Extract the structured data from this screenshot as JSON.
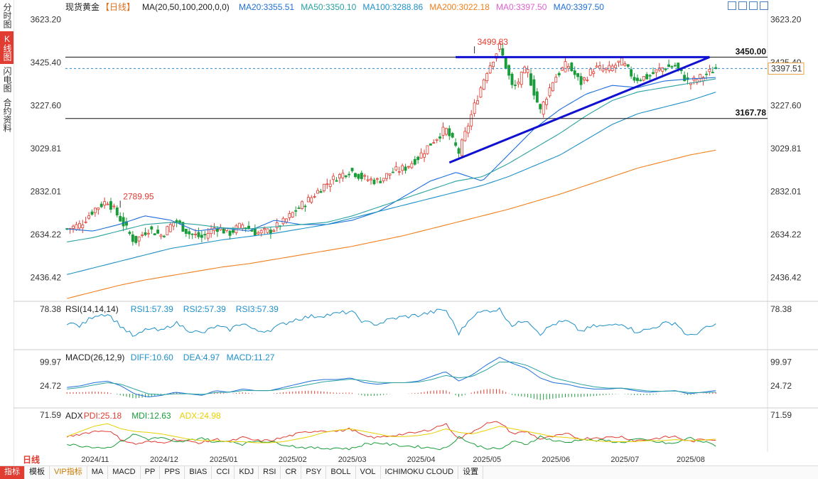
{
  "sidebar": {
    "tabs": [
      {
        "label": "分时图",
        "active": false
      },
      {
        "label": "K线图",
        "active": true
      },
      {
        "label": "闪电图",
        "active": false
      },
      {
        "label": "合约资料",
        "active": false
      }
    ]
  },
  "header": {
    "symbol": "现货黄金",
    "period": "【日线】",
    "ma_params": "MA(20,50,100,200,0,0)",
    "ma_values": [
      {
        "label": "MA20:3355.51",
        "color": "#1e6fd9"
      },
      {
        "label": "MA50:3350.10",
        "color": "#2aa1a1"
      },
      {
        "label": "MA100:3288.86",
        "color": "#1e90c8"
      },
      {
        "label": "MA200:3022.18",
        "color": "#f07f1c"
      },
      {
        "label": "MA0:3397.50",
        "color": "#e060d0"
      },
      {
        "label": "MA0:3397.50",
        "color": "#1e6fd9"
      }
    ]
  },
  "colors": {
    "up": "#e03c31",
    "down": "#1a9c3a",
    "trend": "#1010d0",
    "ma20": "#1e6fd9",
    "ma50": "#2aa1a1",
    "ma100": "#1e90c8",
    "ma200": "#f07f1c"
  },
  "chart_data": [
    {
      "type": "candlestick",
      "title": "现货黄金 【日线】",
      "y_ticks": [
        3623.2,
        3425.4,
        3227.6,
        3029.81,
        2832.01,
        2634.22,
        2436.42
      ],
      "ylim": [
        2340,
        3680
      ],
      "x_labels": [
        "2024/11",
        "2024/12",
        "2025/01",
        "2025/02",
        "2025/03",
        "2025/04",
        "2025/05",
        "2025/06",
        "2025/07",
        "2025/08"
      ],
      "x_label_index": [
        9,
        31,
        50,
        72,
        91,
        113,
        134,
        156,
        178,
        199
      ],
      "n_bars": 208,
      "ohlc_shape": "dense daily bars",
      "series": [
        {
          "name": "MA20",
          "values": [
            2660,
            2650,
            2680,
            2720,
            2700,
            2650,
            2665,
            2650,
            2700,
            2680,
            2680,
            2700,
            2740,
            2810,
            2880,
            2920,
            2880,
            3000,
            3120,
            3210,
            3280,
            3320,
            3310,
            3340,
            3350,
            3356
          ]
        },
        {
          "name": "MA50",
          "values": [
            2600,
            2620,
            2650,
            2680,
            2690,
            2680,
            2665,
            2660,
            2670,
            2680,
            2690,
            2720,
            2760,
            2800,
            2840,
            2880,
            2900,
            2960,
            3030,
            3100,
            3180,
            3250,
            3290,
            3310,
            3330,
            3350
          ]
        },
        {
          "name": "MA100",
          "values": [
            2450,
            2480,
            2510,
            2540,
            2570,
            2590,
            2610,
            2625,
            2640,
            2660,
            2680,
            2710,
            2740,
            2770,
            2800,
            2830,
            2860,
            2900,
            2950,
            3000,
            3070,
            3140,
            3190,
            3220,
            3250,
            3289
          ]
        },
        {
          "name": "MA200",
          "values": [
            2340,
            2370,
            2400,
            2425,
            2445,
            2465,
            2485,
            2500,
            2520,
            2540,
            2560,
            2580,
            2605,
            2630,
            2660,
            2690,
            2720,
            2750,
            2785,
            2820,
            2860,
            2900,
            2940,
            2970,
            3000,
            3022
          ]
        }
      ],
      "close": [
        2660,
        2680,
        2750,
        2790,
        2700,
        2600,
        2660,
        2630,
        2700,
        2640,
        2620,
        2670,
        2640,
        2680,
        2640,
        2650,
        2690,
        2750,
        2800,
        2860,
        2900,
        2930,
        2890,
        2880,
        2920,
        2940,
        2990,
        3060,
        3120,
        3010,
        3200,
        3380,
        3500,
        3300,
        3400,
        3200,
        3350,
        3420,
        3330,
        3400,
        3390,
        3430,
        3350,
        3360,
        3400,
        3410,
        3330,
        3360,
        3398
      ],
      "annotations": [
        {
          "text": "3499.83",
          "kind": "high"
        },
        {
          "text": "2789.95",
          "kind": "high"
        },
        {
          "text": "3450.00",
          "kind": "level",
          "y": 3450.0
        },
        {
          "text": "3167.78",
          "kind": "level",
          "y": 3167.78
        },
        {
          "text": "3397.51",
          "kind": "last",
          "y": 3397.51
        }
      ]
    },
    {
      "type": "line",
      "title": "RSI(14,14,14)",
      "legend": [
        {
          "label": "RSI1:57.39",
          "color": "#1e90c8"
        },
        {
          "label": "RSI2:57.39",
          "color": "#1e90c8"
        },
        {
          "label": "RSI3:57.39",
          "color": "#1e90c8"
        }
      ],
      "y_ticks": [
        78.38
      ],
      "ylim": [
        25,
        85
      ],
      "values": [
        60,
        55,
        70,
        72,
        55,
        40,
        52,
        48,
        60,
        50,
        45,
        55,
        50,
        60,
        48,
        50,
        58,
        65,
        68,
        70,
        72,
        75,
        60,
        58,
        65,
        68,
        70,
        74,
        78,
        45,
        70,
        76,
        78,
        55,
        65,
        45,
        58,
        62,
        48,
        55,
        55,
        60,
        48,
        50,
        58,
        60,
        40,
        50,
        57
      ]
    },
    {
      "type": "bar+line",
      "title": "MACD(26,12,9)",
      "legend": [
        {
          "label": "DIFF:10.60",
          "color": "#1e90c8"
        },
        {
          "label": "DEA:4.97",
          "color": "#1e90c8"
        },
        {
          "label": "MACD:11.27",
          "color": "#1e90c8"
        }
      ],
      "y_ticks": [
        99.97,
        24.72
      ],
      "ylim": [
        -40,
        130
      ],
      "diff": [
        20,
        25,
        35,
        40,
        25,
        0,
        -10,
        -5,
        5,
        0,
        -5,
        10,
        5,
        15,
        10,
        10,
        20,
        30,
        40,
        45,
        45,
        50,
        35,
        30,
        35,
        35,
        40,
        55,
        70,
        40,
        60,
        90,
        115,
        95,
        80,
        50,
        35,
        30,
        20,
        15,
        15,
        18,
        10,
        5,
        8,
        10,
        0,
        5,
        10
      ],
      "dea": [
        15,
        20,
        28,
        35,
        30,
        15,
        0,
        -3,
        0,
        0,
        -2,
        4,
        5,
        10,
        10,
        10,
        15,
        22,
        30,
        38,
        42,
        46,
        42,
        36,
        35,
        35,
        37,
        45,
        58,
        50,
        55,
        75,
        100,
        100,
        90,
        70,
        50,
        40,
        30,
        22,
        18,
        18,
        14,
        9,
        8,
        9,
        4,
        4,
        5
      ]
    },
    {
      "type": "line",
      "title": "ADX",
      "legend": [
        {
          "label": "PDI:25.18",
          "color": "#e03c31"
        },
        {
          "label": "MDI:12.63",
          "color": "#1a9c3a"
        },
        {
          "label": "ADX:24.98",
          "color": "#e8d000"
        }
      ],
      "y_ticks": [
        71.59
      ],
      "ylim": [
        0,
        80
      ],
      "pdi": [
        30,
        35,
        40,
        42,
        25,
        15,
        20,
        18,
        25,
        20,
        18,
        25,
        20,
        28,
        22,
        22,
        28,
        35,
        40,
        42,
        40,
        45,
        30,
        28,
        32,
        35,
        38,
        45,
        55,
        25,
        40,
        55,
        58,
        35,
        40,
        25,
        30,
        35,
        25,
        28,
        28,
        30,
        22,
        24,
        28,
        30,
        20,
        24,
        25
      ],
      "mdi": [
        15,
        12,
        10,
        8,
        20,
        35,
        25,
        28,
        18,
        22,
        28,
        18,
        22,
        15,
        22,
        20,
        15,
        10,
        8,
        7,
        8,
        6,
        15,
        18,
        14,
        12,
        10,
        8,
        6,
        30,
        15,
        8,
        5,
        20,
        15,
        30,
        22,
        18,
        25,
        22,
        22,
        18,
        25,
        22,
        18,
        16,
        28,
        20,
        13
      ],
      "adx": [
        30,
        40,
        50,
        55,
        45,
        40,
        38,
        35,
        30,
        25,
        22,
        22,
        20,
        20,
        18,
        18,
        20,
        25,
        30,
        38,
        42,
        45,
        40,
        35,
        30,
        30,
        32,
        36,
        45,
        38,
        35,
        42,
        50,
        45,
        40,
        35,
        30,
        28,
        25,
        22,
        20,
        20,
        20,
        22,
        22,
        24,
        22,
        23,
        25
      ]
    }
  ],
  "toolbar": {
    "period_button": "日线",
    "items": [
      {
        "label": "指标",
        "active": true,
        "vip": false
      },
      {
        "label": "模板",
        "active": false,
        "vip": false
      },
      {
        "label": "VIP指标",
        "active": false,
        "vip": true
      },
      {
        "label": "MA",
        "active": false,
        "vip": false
      },
      {
        "label": "MACD",
        "active": false,
        "vip": false
      },
      {
        "label": "PP",
        "active": false,
        "vip": false
      },
      {
        "label": "PPS",
        "active": false,
        "vip": false
      },
      {
        "label": "BIAS",
        "active": false,
        "vip": false
      },
      {
        "label": "CCI",
        "active": false,
        "vip": false
      },
      {
        "label": "KDJ",
        "active": false,
        "vip": false
      },
      {
        "label": "RSI",
        "active": false,
        "vip": false
      },
      {
        "label": "CR",
        "active": false,
        "vip": false
      },
      {
        "label": "PSY",
        "active": false,
        "vip": false
      },
      {
        "label": "BOLL",
        "active": false,
        "vip": false
      },
      {
        "label": "VOL",
        "active": false,
        "vip": false
      },
      {
        "label": "ICHIMOKU CLOUD",
        "active": false,
        "vip": false
      },
      {
        "label": "设置",
        "active": false,
        "vip": false
      }
    ]
  }
}
